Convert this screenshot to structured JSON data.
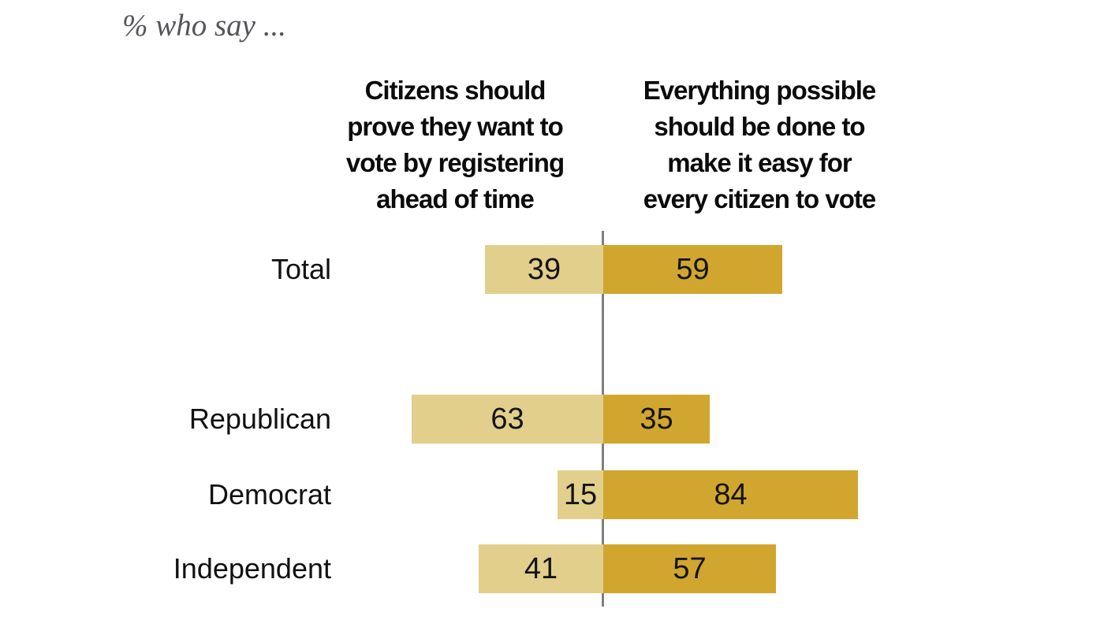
{
  "title": "% who say ...",
  "chart_data": {
    "type": "bar",
    "variant": "diverging-horizontal-paired",
    "title": "% who say ...",
    "column_headers": [
      "Citizens should\nprove they want to\nvote by registering\nahead of time",
      "Everything possible\nshould be done to\nmake it easy for\nevery citizen to vote"
    ],
    "categories": [
      "Total",
      "Republican",
      "Democrat",
      "Independent"
    ],
    "series": [
      {
        "name": "Citizens should prove they want to vote by registering ahead of time",
        "values": [
          39,
          63,
          15,
          41
        ],
        "color": "#e2cf8c"
      },
      {
        "name": "Everything possible should be done to make it easy for every citizen to vote",
        "values": [
          59,
          35,
          84,
          57
        ],
        "color": "#d1a62f"
      }
    ],
    "unit": "%",
    "xlim": [
      0,
      100
    ],
    "grid": false,
    "legend": "column headers above bars",
    "divider_color": "#7f7f7f",
    "value_label_color": "#141414"
  }
}
